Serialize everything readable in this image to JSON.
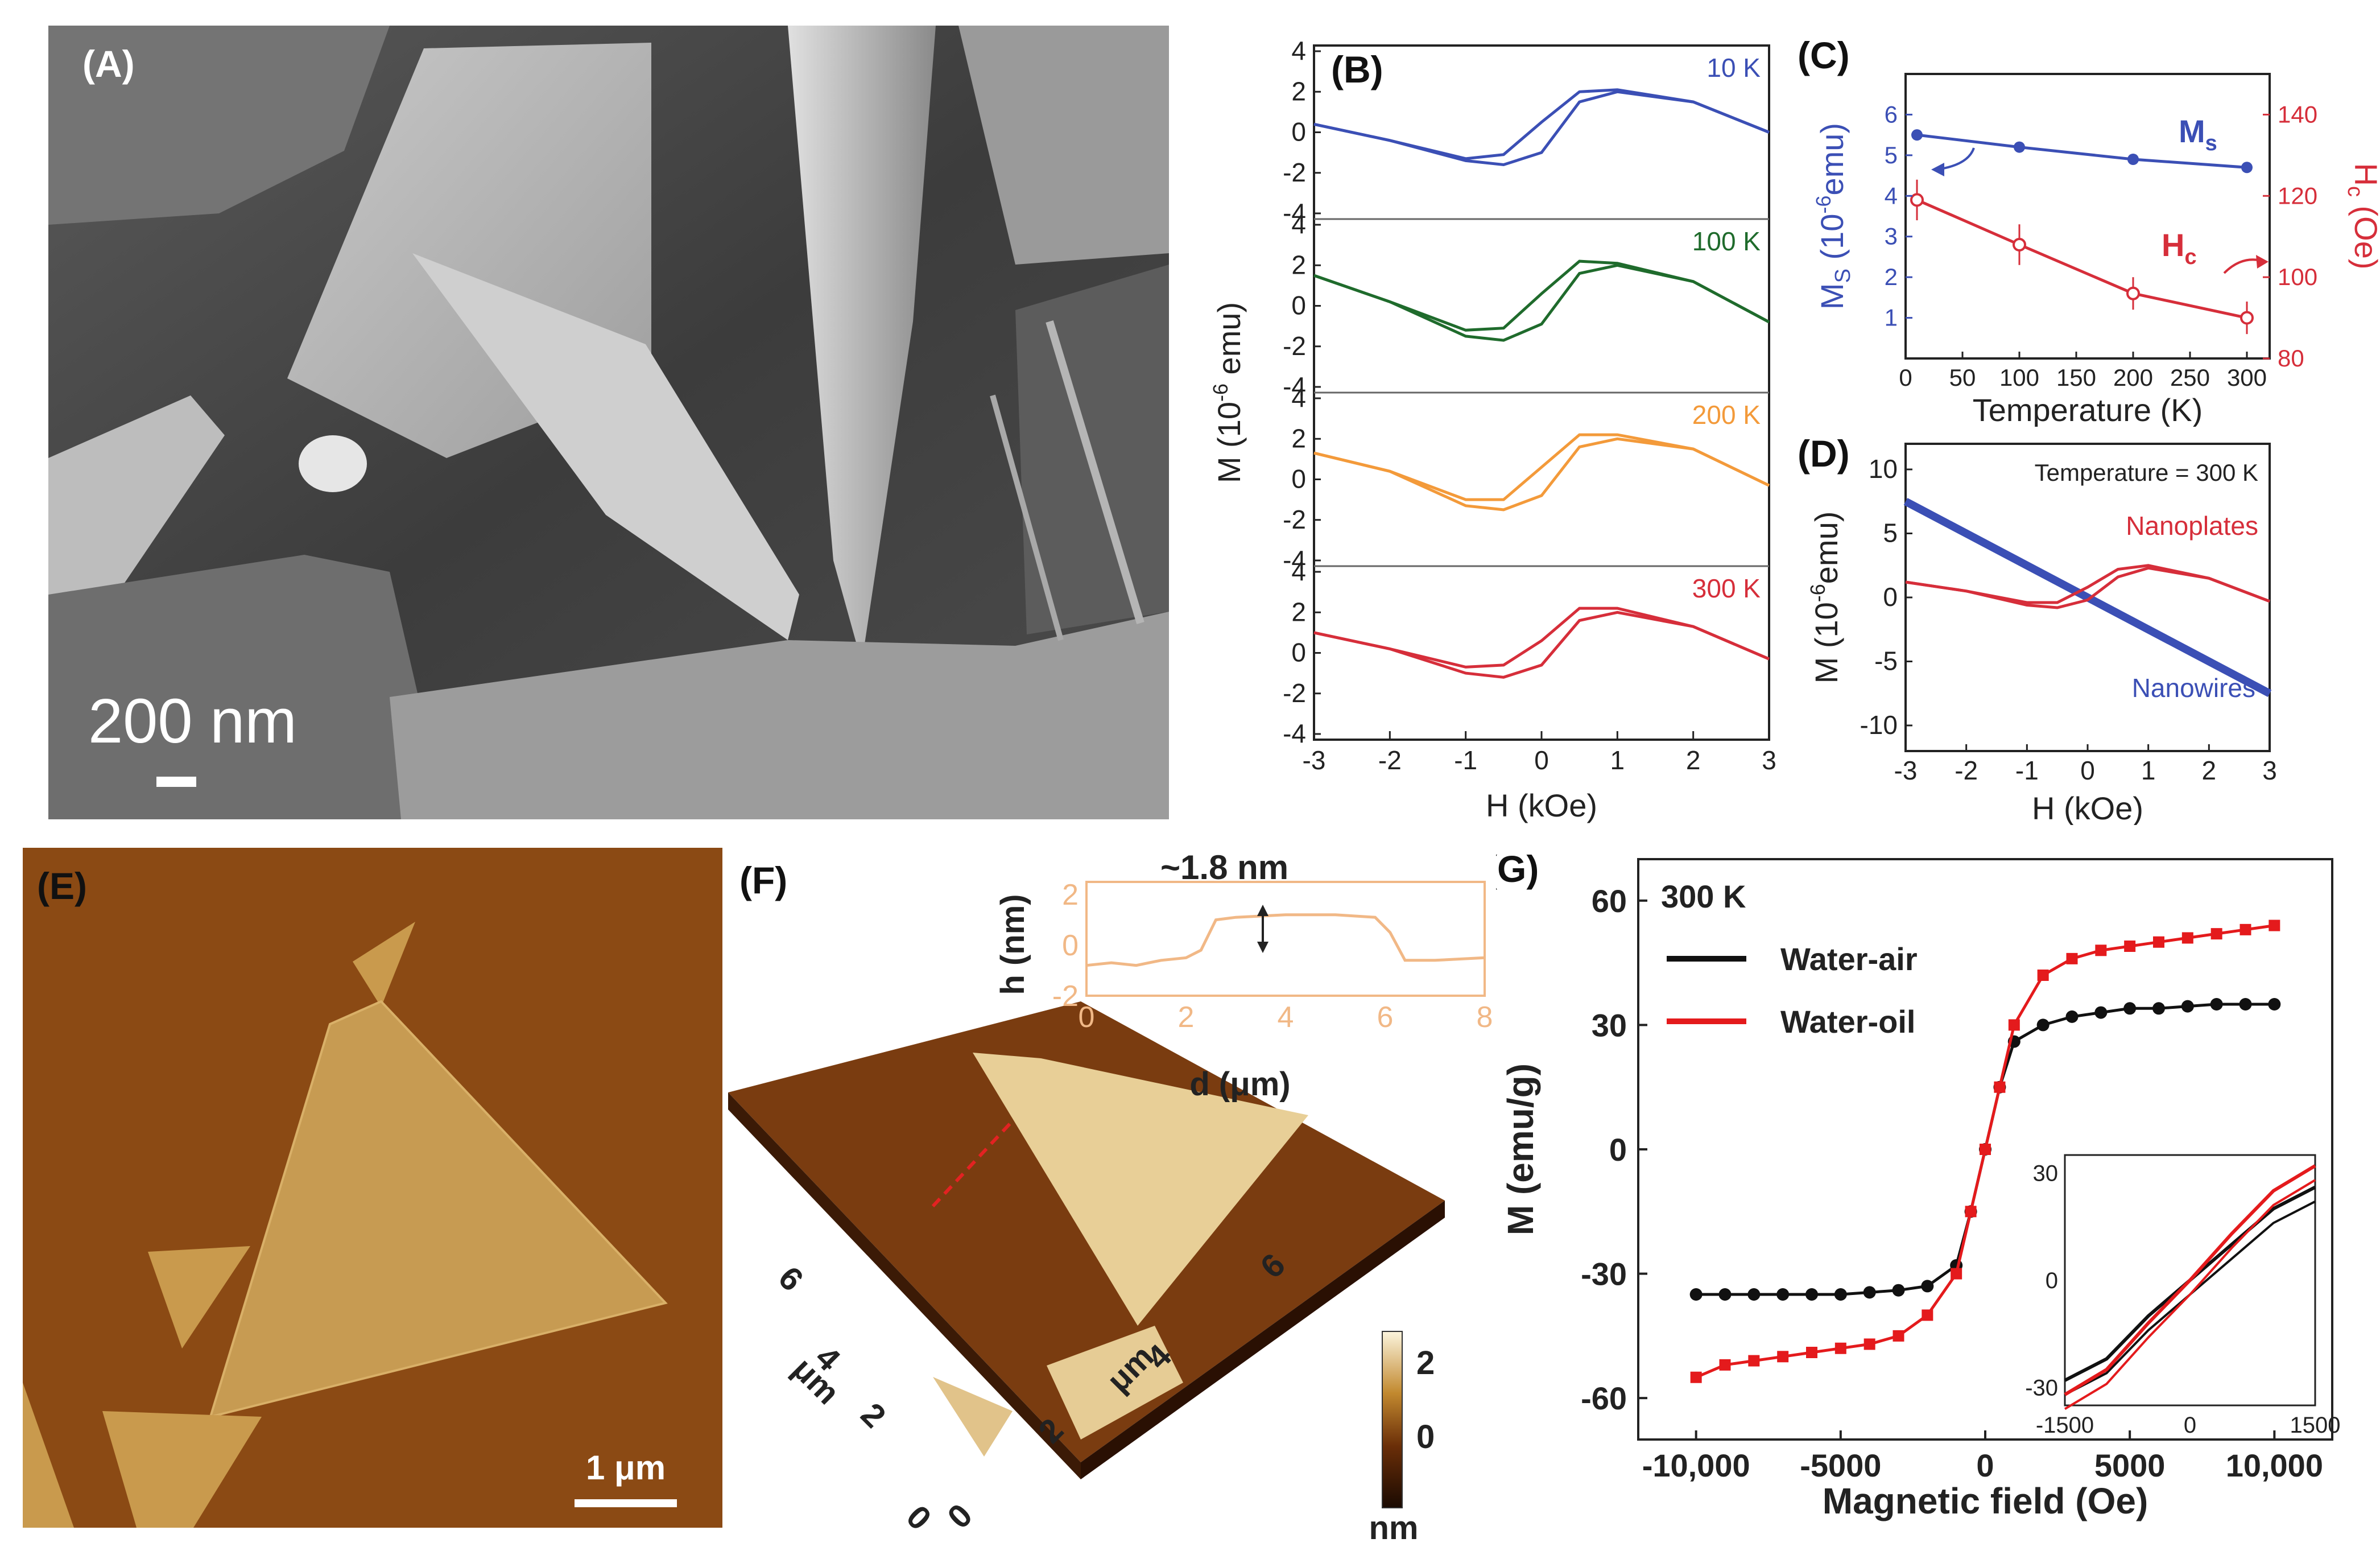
{
  "panels": {
    "A": {
      "label": "(A)",
      "scale_bar": "200 nm"
    },
    "B": {
      "label": "(B)",
      "xlabel": "H (kOe)",
      "ylabel_main": "M (10",
      "ylabel_sup": "-6",
      "ylabel_tail": " emu)",
      "x_ticks": [
        "-3",
        "-2",
        "-1",
        "0",
        "1",
        "2",
        "3"
      ],
      "y_ticks": [
        "4",
        "2",
        "0",
        "-2",
        "-4"
      ]
    },
    "C": {
      "label": "(C)",
      "xlabel": "Temperature (K)",
      "left_label": "M",
      "left_sub": "S",
      "left_tail_a": " (10",
      "left_sup": "-6",
      "left_tail_b": "emu)",
      "right_label": "H",
      "right_sub": "c",
      "right_tail": " (Oe)",
      "ms_label": "M",
      "ms_sub": "s",
      "hc_label": "H",
      "hc_sub": "c",
      "x_ticks": [
        "0",
        "50",
        "100",
        "150",
        "200",
        "250",
        "300"
      ],
      "left_ticks": [
        "1",
        "2",
        "3",
        "4",
        "5",
        "6"
      ],
      "right_ticks": [
        "80",
        "100",
        "120",
        "140"
      ]
    },
    "D": {
      "label": "(D)",
      "xlabel": "H (kOe)",
      "ylabel_main": "M (10",
      "ylabel_sup": "-6",
      "ylabel_tail": "emu)",
      "note": "Temperature = 300 K",
      "series_plates": "Nanoplates",
      "series_wires": "Nanowires",
      "x_ticks": [
        "-3",
        "-2",
        "-1",
        "0",
        "1",
        "2",
        "3"
      ],
      "y_ticks": [
        "10",
        "5",
        "0",
        "-5",
        "-10"
      ]
    },
    "E": {
      "label": "(E)",
      "scale_bar": "1 μm"
    },
    "F": {
      "label": "(F)",
      "step": "~1.8 nm",
      "inset_ylabel": "h (nm)",
      "inset_xlabel": "d (μm)",
      "inset_x_ticks": [
        "0",
        "2",
        "4",
        "6",
        "8"
      ],
      "inset_y_ticks": [
        "2",
        "0",
        "-2"
      ],
      "left_axis_ticks": [
        "6",
        "4",
        "2",
        "0"
      ],
      "left_axis_unit": "μm",
      "right_axis_ticks": [
        "0",
        "2",
        "4",
        "6"
      ],
      "right_axis_unit": "μm",
      "colorbar_ticks": [
        "2",
        "0"
      ],
      "colorbar_unit": "nm"
    },
    "G": {
      "label": "(G)",
      "temp": "300 K",
      "legend": [
        "Water-air",
        "Water-oil"
      ],
      "xlabel": "Magnetic field (Oe)",
      "ylabel": "M (emu/g)",
      "x_ticks": [
        "-10,000",
        "-5000",
        "0",
        "5000",
        "10,000"
      ],
      "y_ticks": [
        "60",
        "30",
        "0",
        "-30",
        "-60"
      ],
      "inset_x_ticks": [
        "-1500",
        "0",
        "1500"
      ],
      "inset_y_ticks": [
        "30",
        "0",
        "-30"
      ]
    }
  },
  "chart_data": [
    {
      "panel": "B",
      "type": "line",
      "xlabel": "H (kOe)",
      "ylabel": "M (10^-6 emu)",
      "xlim": [
        -3,
        3
      ],
      "ylim": [
        -4,
        4
      ],
      "series": [
        {
          "name": "10 K",
          "color": "#3b4fb5",
          "x": [
            -3,
            -2,
            -1,
            -0.5,
            0,
            0.5,
            1,
            2,
            3
          ],
          "y_up": [
            0.4,
            -0.4,
            -1.3,
            -1.1,
            0.5,
            2.0,
            2.1,
            1.5,
            0.0
          ],
          "y_down": [
            0.4,
            -0.4,
            -1.4,
            -1.6,
            -1.0,
            1.5,
            2.0,
            1.5,
            0.0
          ]
        },
        {
          "name": "100 K",
          "color": "#1f6b2c",
          "x": [
            -3,
            -2,
            -1,
            -0.5,
            0,
            0.5,
            1,
            2,
            3
          ],
          "y_up": [
            1.5,
            0.2,
            -1.2,
            -1.1,
            0.6,
            2.2,
            2.1,
            1.2,
            -0.8
          ],
          "y_down": [
            1.5,
            0.2,
            -1.5,
            -1.7,
            -0.9,
            1.6,
            2.0,
            1.2,
            -0.8
          ]
        },
        {
          "name": "200 K",
          "color": "#f39a3a",
          "x": [
            -3,
            -2,
            -1,
            -0.5,
            0,
            0.5,
            1,
            2,
            3
          ],
          "y_up": [
            1.3,
            0.4,
            -1.0,
            -1.0,
            0.6,
            2.2,
            2.2,
            1.5,
            -0.3
          ],
          "y_down": [
            1.3,
            0.4,
            -1.3,
            -1.5,
            -0.8,
            1.6,
            2.0,
            1.5,
            -0.3
          ]
        },
        {
          "name": "300 K",
          "color": "#d62e3a",
          "x": [
            -3,
            -2,
            -1,
            -0.5,
            0,
            0.5,
            1,
            2,
            3
          ],
          "y_up": [
            1.0,
            0.2,
            -0.7,
            -0.6,
            0.6,
            2.2,
            2.2,
            1.3,
            -0.3
          ],
          "y_down": [
            1.0,
            0.2,
            -1.0,
            -1.2,
            -0.6,
            1.6,
            2.0,
            1.3,
            -0.3
          ]
        }
      ]
    },
    {
      "panel": "C",
      "type": "line",
      "xlabel": "Temperature (K)",
      "ylabel": "Ms (10^-6 emu)",
      "ylabel_right": "Hc (Oe)",
      "xlim": [
        0,
        320
      ],
      "ylim": [
        0,
        7
      ],
      "ylim_right": [
        80,
        150
      ],
      "series": [
        {
          "name": "Ms",
          "axis": "left",
          "color": "#3b4fb5",
          "x": [
            10,
            100,
            200,
            300
          ],
          "y": [
            5.5,
            5.2,
            4.9,
            4.7
          ]
        },
        {
          "name": "Hc",
          "axis": "right",
          "color": "#d62e3a",
          "x": [
            10,
            100,
            200,
            300
          ],
          "y": [
            119,
            108,
            96,
            90
          ],
          "err": [
            5,
            5,
            4,
            4
          ]
        }
      ]
    },
    {
      "panel": "D",
      "type": "line",
      "xlabel": "H (kOe)",
      "ylabel": "M (10^-6 emu)",
      "xlim": [
        -3,
        3
      ],
      "ylim": [
        -12,
        12
      ],
      "series": [
        {
          "name": "Nanoplates",
          "color": "#d62e3a",
          "x": [
            -3,
            -2,
            -1,
            -0.5,
            0,
            0.5,
            1,
            2,
            3
          ],
          "y_up": [
            1.2,
            0.5,
            -0.4,
            -0.4,
            0.8,
            2.2,
            2.5,
            1.5,
            -0.3
          ],
          "y_down": [
            1.2,
            0.5,
            -0.6,
            -0.8,
            -0.2,
            1.6,
            2.3,
            1.5,
            -0.3
          ]
        },
        {
          "name": "Nanowires",
          "color": "#3b4fb5",
          "x": [
            -3,
            3
          ],
          "y": [
            7.5,
            -7.5
          ]
        }
      ]
    },
    {
      "panel": "F-inset",
      "type": "line",
      "xlabel": "d (μm)",
      "ylabel": "h (nm)",
      "xlim": [
        0,
        8
      ],
      "ylim": [
        -2,
        2.5
      ],
      "series": [
        {
          "name": "height profile",
          "color": "#f1b886",
          "x": [
            0,
            0.5,
            1,
            1.5,
            2,
            2.3,
            2.6,
            3,
            4,
            5,
            5.8,
            6.1,
            6.4,
            7,
            8
          ],
          "y": [
            -0.8,
            -0.7,
            -0.8,
            -0.6,
            -0.5,
            -0.2,
            1.0,
            1.1,
            1.2,
            1.2,
            1.1,
            0.5,
            -0.6,
            -0.6,
            -0.5
          ]
        }
      ]
    },
    {
      "panel": "G",
      "type": "scatter",
      "xlabel": "Magnetic field (Oe)",
      "ylabel": "M (emu/g)",
      "xlim": [
        -12000,
        12000
      ],
      "ylim": [
        -70,
        70
      ],
      "series": [
        {
          "name": "Water-air",
          "color": "#111111",
          "x": [
            -10000,
            -9000,
            -8000,
            -7000,
            -6000,
            -5000,
            -4000,
            -3000,
            -2000,
            -1000,
            -500,
            0,
            500,
            1000,
            2000,
            3000,
            4000,
            5000,
            6000,
            7000,
            8000,
            9000,
            10000
          ],
          "y": [
            -35,
            -35,
            -35,
            -35,
            -35,
            -35,
            -34.5,
            -34,
            -33,
            -28,
            -15,
            0,
            15,
            26,
            30,
            32,
            33,
            34,
            34,
            34.5,
            35,
            35,
            35
          ]
        },
        {
          "name": "Water-oil",
          "color": "#e41a1c",
          "x": [
            -10000,
            -9000,
            -8000,
            -7000,
            -6000,
            -5000,
            -4000,
            -3000,
            -2000,
            -1000,
            -500,
            0,
            500,
            1000,
            2000,
            3000,
            4000,
            5000,
            6000,
            7000,
            8000,
            9000,
            10000
          ],
          "y": [
            -55,
            -52,
            -51,
            -50,
            -49,
            -48,
            -47,
            -45,
            -40,
            -30,
            -15,
            0,
            15,
            30,
            42,
            46,
            48,
            49,
            50,
            51,
            52,
            53,
            54
          ]
        }
      ]
    },
    {
      "panel": "G-inset",
      "type": "line",
      "xlim": [
        -1500,
        1500
      ],
      "ylim": [
        -35,
        35
      ],
      "series": [
        {
          "name": "Water-air",
          "color": "#111111",
          "x": [
            -1500,
            -1000,
            -500,
            0,
            500,
            1000,
            1500
          ],
          "y": [
            -28,
            -22,
            -10,
            0,
            10,
            20,
            26
          ]
        },
        {
          "name": "Water-oil",
          "color": "#e41a1c",
          "x": [
            -1500,
            -1000,
            -500,
            0,
            500,
            1000,
            1500
          ],
          "y": [
            -32,
            -25,
            -12,
            0,
            13,
            25,
            32
          ]
        }
      ]
    }
  ]
}
